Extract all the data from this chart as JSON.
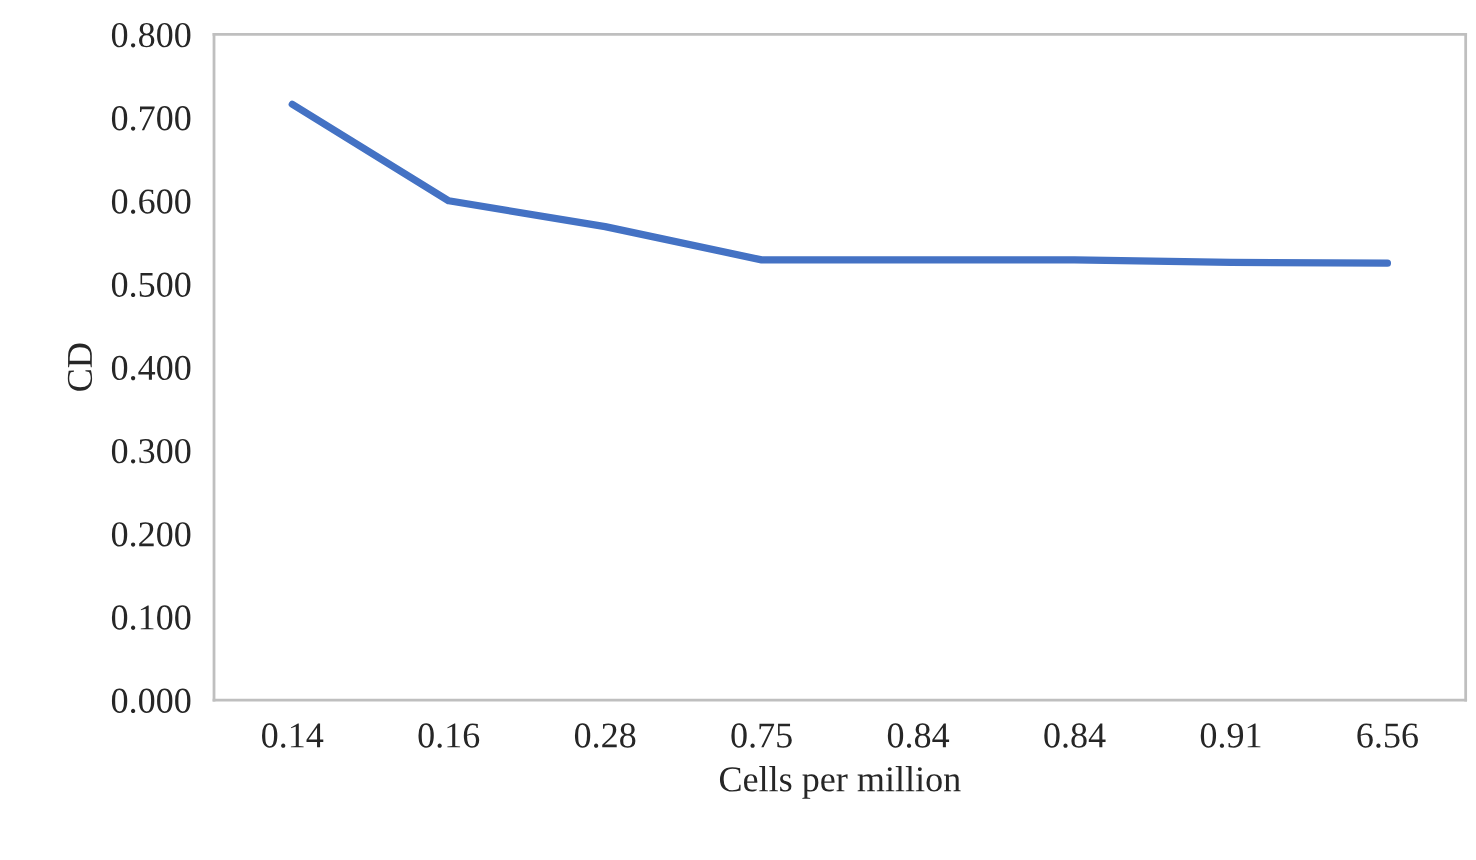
{
  "chart_data": {
    "type": "line",
    "xlabel": "Cells per million",
    "ylabel": "CD",
    "categories": [
      "0.14",
      "0.16",
      "0.28",
      "0.75",
      "0.84",
      "0.84",
      "0.91",
      "6.56"
    ],
    "series": [
      {
        "color": "#4472c4",
        "values": [
          0.716,
          0.6,
          0.569,
          0.529,
          0.529,
          0.529,
          0.526,
          0.525
        ]
      }
    ],
    "ylim": [
      0,
      0.8
    ],
    "yticks": [
      {
        "value": 0,
        "label": "0.000"
      },
      {
        "value": 0.1,
        "label": "0.100"
      },
      {
        "value": 0.2,
        "label": "0.200"
      },
      {
        "value": 0.3,
        "label": "0.300"
      },
      {
        "value": 0.4,
        "label": "0.400"
      },
      {
        "value": 0.5,
        "label": "0.500"
      },
      {
        "value": 0.6,
        "label": "0.600"
      },
      {
        "value": 0.7,
        "label": "0.700"
      },
      {
        "value": 0.8,
        "label": "0.800"
      }
    ],
    "grid": false,
    "legend": false,
    "marker": "none",
    "line_style": "solid"
  }
}
